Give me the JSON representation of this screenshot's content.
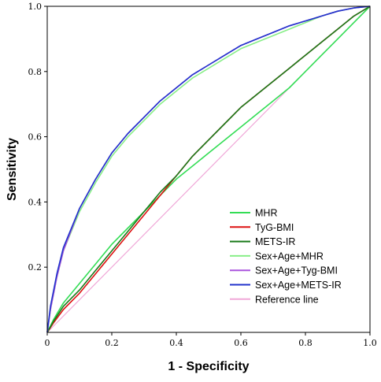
{
  "chart_data": {
    "type": "line",
    "title": "",
    "xlabel": "1 - Specificity",
    "ylabel": "Sensitivity",
    "xlim": [
      0,
      1
    ],
    "ylim": [
      0,
      1
    ],
    "x_ticks": [
      "0",
      "0.2",
      "0.4",
      "0.6",
      "0.8",
      "1.0"
    ],
    "y_ticks": [
      "0.2",
      "0.4",
      "0.6",
      "0.8",
      "1.0"
    ],
    "grid": false,
    "legend_position": "bottom-right",
    "series": [
      {
        "name": "MHR",
        "color": "#33dd55",
        "x": [
          0,
          0.02,
          0.05,
          0.1,
          0.15,
          0.2,
          0.25,
          0.3,
          0.35,
          0.4,
          0.45,
          0.5,
          0.55,
          0.6,
          0.65,
          0.7,
          0.75,
          0.8,
          0.85,
          0.9,
          0.95,
          1.0
        ],
        "y": [
          0,
          0.04,
          0.09,
          0.15,
          0.21,
          0.27,
          0.32,
          0.37,
          0.42,
          0.47,
          0.51,
          0.55,
          0.59,
          0.63,
          0.67,
          0.71,
          0.75,
          0.8,
          0.85,
          0.9,
          0.95,
          1.0
        ]
      },
      {
        "name": "TyG-BMI",
        "color": "#dd1111",
        "x": [
          0,
          0.02,
          0.05,
          0.1,
          0.15,
          0.2,
          0.25,
          0.3,
          0.35,
          0.4,
          0.45,
          0.5,
          0.55,
          0.6,
          0.65,
          0.7,
          0.75,
          0.8,
          0.85,
          0.9,
          0.95,
          1.0
        ],
        "y": [
          0,
          0.03,
          0.07,
          0.12,
          0.18,
          0.24,
          0.3,
          0.36,
          0.42,
          0.48,
          0.54,
          0.59,
          0.64,
          0.69,
          0.73,
          0.77,
          0.81,
          0.85,
          0.89,
          0.93,
          0.97,
          1.0
        ]
      },
      {
        "name": "METS-IR",
        "color": "#1a7a1a",
        "x": [
          0,
          0.02,
          0.05,
          0.1,
          0.15,
          0.2,
          0.25,
          0.3,
          0.35,
          0.4,
          0.45,
          0.5,
          0.55,
          0.6,
          0.65,
          0.7,
          0.75,
          0.8,
          0.85,
          0.9,
          0.95,
          1.0
        ],
        "y": [
          0,
          0.035,
          0.08,
          0.13,
          0.19,
          0.25,
          0.31,
          0.37,
          0.43,
          0.48,
          0.54,
          0.59,
          0.64,
          0.69,
          0.73,
          0.77,
          0.81,
          0.85,
          0.89,
          0.93,
          0.97,
          1.0
        ]
      },
      {
        "name": "Sex+Age+MHR",
        "color": "#88ee88",
        "x": [
          0,
          0.01,
          0.03,
          0.05,
          0.1,
          0.15,
          0.2,
          0.25,
          0.3,
          0.35,
          0.4,
          0.45,
          0.5,
          0.55,
          0.6,
          0.65,
          0.7,
          0.75,
          0.8,
          0.85,
          0.9,
          0.95,
          1.0
        ],
        "y": [
          0,
          0.07,
          0.17,
          0.25,
          0.37,
          0.46,
          0.54,
          0.6,
          0.65,
          0.7,
          0.74,
          0.78,
          0.81,
          0.84,
          0.87,
          0.89,
          0.91,
          0.93,
          0.95,
          0.97,
          0.985,
          0.995,
          1.0
        ]
      },
      {
        "name": "Sex+Age+Tyg-BMI",
        "color": "#aa55dd",
        "x": [
          0,
          0.01,
          0.03,
          0.05,
          0.1,
          0.15,
          0.2,
          0.25,
          0.3,
          0.35,
          0.4,
          0.45,
          0.5,
          0.55,
          0.6,
          0.65,
          0.7,
          0.75,
          0.8,
          0.85,
          0.9,
          0.95,
          1.0
        ],
        "y": [
          0,
          0.07,
          0.17,
          0.25,
          0.38,
          0.47,
          0.55,
          0.61,
          0.66,
          0.71,
          0.75,
          0.79,
          0.82,
          0.85,
          0.88,
          0.9,
          0.92,
          0.94,
          0.955,
          0.97,
          0.985,
          0.995,
          1.0
        ]
      },
      {
        "name": "Sex+Age+METS-IR",
        "color": "#2233cc",
        "x": [
          0,
          0.01,
          0.03,
          0.05,
          0.1,
          0.15,
          0.2,
          0.25,
          0.3,
          0.35,
          0.4,
          0.45,
          0.5,
          0.55,
          0.6,
          0.65,
          0.7,
          0.75,
          0.8,
          0.85,
          0.9,
          0.95,
          1.0
        ],
        "y": [
          0,
          0.08,
          0.18,
          0.26,
          0.38,
          0.47,
          0.55,
          0.61,
          0.66,
          0.71,
          0.75,
          0.79,
          0.82,
          0.85,
          0.88,
          0.9,
          0.92,
          0.94,
          0.955,
          0.97,
          0.985,
          0.995,
          1.0
        ]
      },
      {
        "name": "Reference line",
        "color": "#f0a8d8",
        "x": [
          0,
          1
        ],
        "y": [
          0,
          1
        ]
      }
    ]
  }
}
